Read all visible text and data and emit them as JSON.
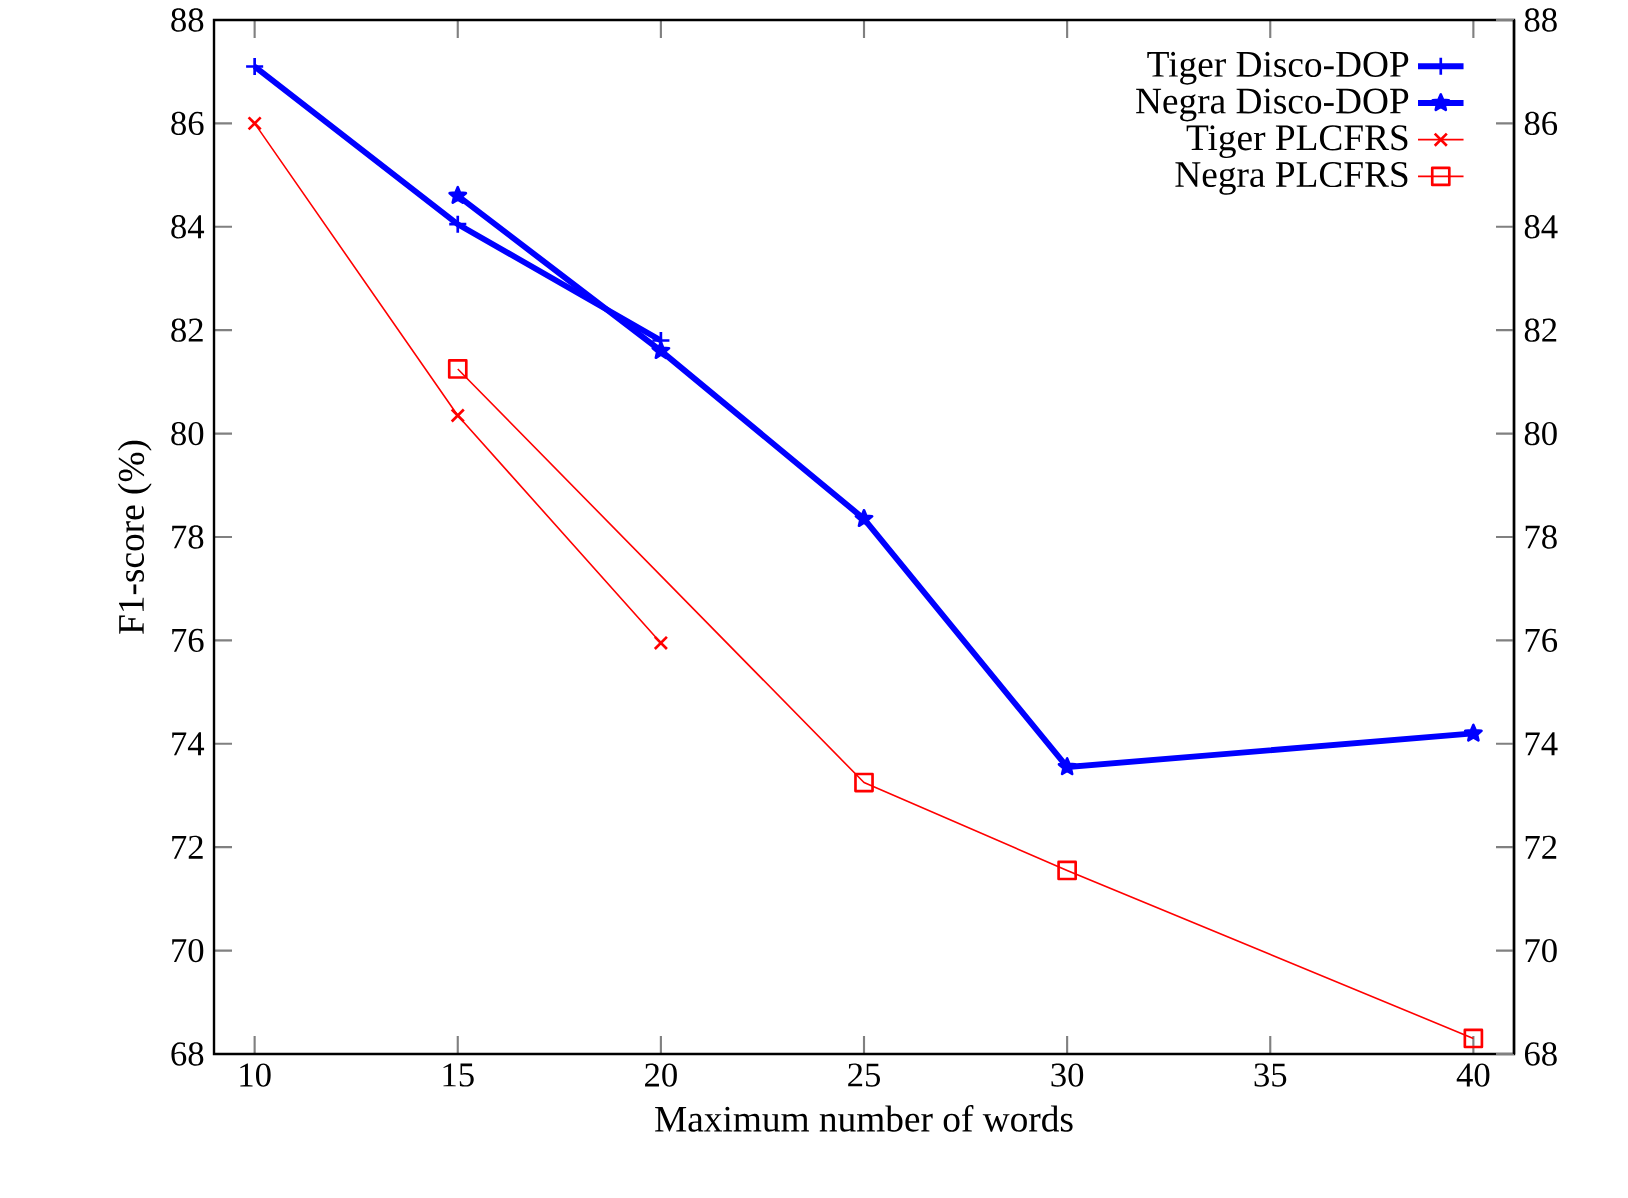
{
  "chart_data": {
    "type": "line",
    "xlabel": "Maximum number of words",
    "ylabel": "F1-score (%)",
    "series": [
      {
        "name": "Tiger Disco-DOP",
        "color": "#0000ff",
        "marker": "plus",
        "x": [
          10,
          15,
          20
        ],
        "values": [
          87.1,
          84.05,
          81.8
        ]
      },
      {
        "name": "Negra Disco-DOP",
        "color": "#0000ff",
        "marker": "star",
        "x": [
          15,
          20,
          25,
          30,
          40
        ],
        "values": [
          84.6,
          81.6,
          78.35,
          73.55,
          74.2
        ]
      },
      {
        "name": "Tiger PLCFRS",
        "color": "#ff0000",
        "marker": "cross",
        "x": [
          10,
          15,
          20
        ],
        "values": [
          86.0,
          80.35,
          75.95
        ]
      },
      {
        "name": "Negra PLCFRS",
        "color": "#ff0000",
        "marker": "square",
        "x": [
          15,
          25,
          30,
          40
        ],
        "values": [
          81.25,
          73.25,
          71.55,
          68.3
        ]
      }
    ],
    "xlim": [
      9,
      41
    ],
    "xticks": [
      10,
      15,
      20,
      25,
      30,
      35,
      40
    ],
    "ylim": [
      68,
      88
    ],
    "yticks": [
      68,
      70,
      72,
      74,
      76,
      78,
      80,
      82,
      84,
      86,
      88
    ],
    "y2lim": [
      68,
      88
    ],
    "y2ticks": [
      68,
      70,
      72,
      74,
      76,
      78,
      80,
      82,
      84,
      86,
      88
    ],
    "grid": false,
    "legend": "top right",
    "line_style": "solid"
  }
}
